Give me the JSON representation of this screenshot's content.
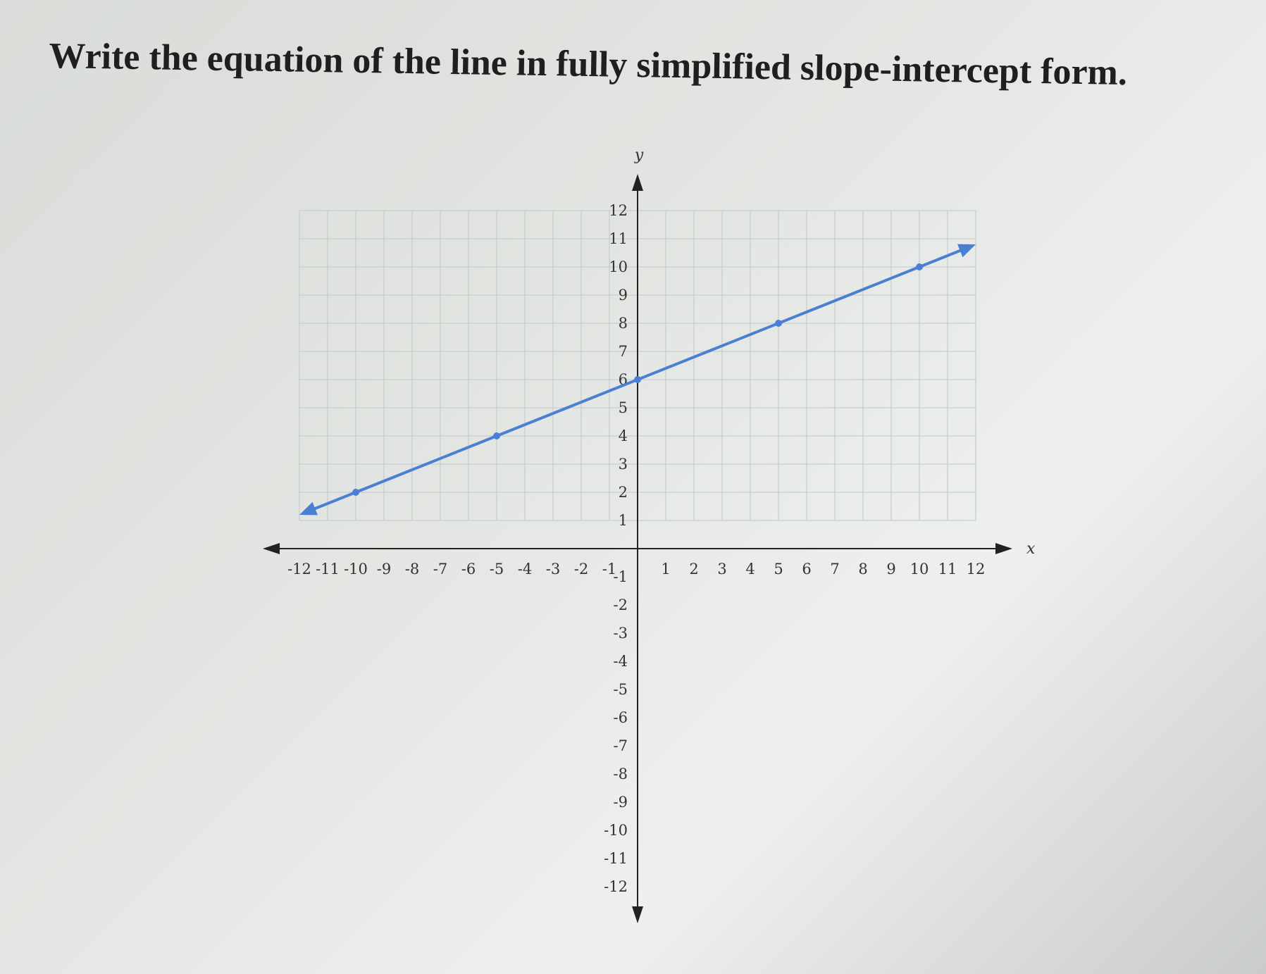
{
  "question": {
    "text": "Write the equation of the line in fully simplified slope-intercept form."
  },
  "chart_data": {
    "type": "line",
    "title": "",
    "xlabel": "x",
    "ylabel": "y",
    "xlim": [
      -12,
      12
    ],
    "ylim": [
      -12,
      12
    ],
    "xticks": [
      -12,
      -11,
      -10,
      -9,
      -8,
      -7,
      -6,
      -5,
      -4,
      -3,
      -2,
      -1,
      1,
      2,
      3,
      4,
      5,
      6,
      7,
      8,
      9,
      10,
      11,
      12
    ],
    "yticks": [
      -12,
      -11,
      -10,
      -9,
      -8,
      -7,
      -6,
      -5,
      -4,
      -3,
      -2,
      -1,
      1,
      2,
      3,
      4,
      5,
      6,
      7,
      8,
      9,
      10,
      11,
      12
    ],
    "grid": true,
    "line_extends_both_directions": true,
    "series": [
      {
        "points": [
          [
            -10,
            2
          ],
          [
            -5,
            4
          ],
          [
            0,
            6
          ],
          [
            5,
            8
          ],
          [
            10,
            10
          ]
        ],
        "color": "#4a7fd4"
      }
    ]
  }
}
